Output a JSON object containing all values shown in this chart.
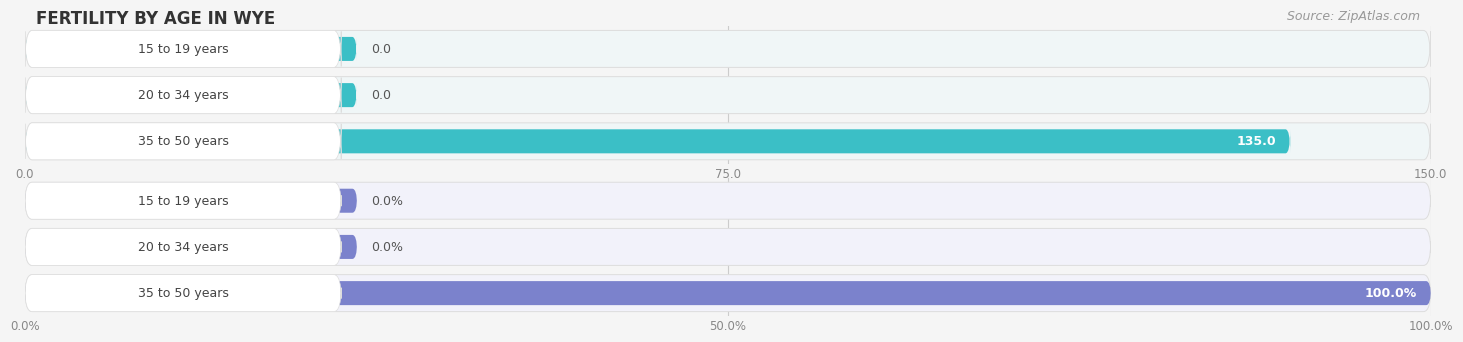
{
  "title": "FERTILITY BY AGE IN WYE",
  "source": "Source: ZipAtlas.com",
  "top_chart": {
    "categories": [
      "15 to 19 years",
      "20 to 34 years",
      "35 to 50 years"
    ],
    "values": [
      0.0,
      0.0,
      135.0
    ],
    "xlim": [
      0,
      150
    ],
    "xticks": [
      0.0,
      75.0,
      150.0
    ],
    "xtick_labels": [
      "0.0",
      "75.0",
      "150.0"
    ],
    "bar_color": "#3bbfc6",
    "bar_light_color": "#a8dde0",
    "bg_bar_color": "#f0f6f7",
    "label_box_color": "#ffffff",
    "value_label_color": "#555555",
    "value_label_color_inside": "#ffffff",
    "cat_text_color": "#444444"
  },
  "bottom_chart": {
    "categories": [
      "15 to 19 years",
      "20 to 34 years",
      "35 to 50 years"
    ],
    "values": [
      0.0,
      0.0,
      100.0
    ],
    "xlim": [
      0,
      100
    ],
    "xticks": [
      0.0,
      50.0,
      100.0
    ],
    "xtick_labels": [
      "0.0%",
      "50.0%",
      "100.0%"
    ],
    "bar_color": "#7b82cc",
    "bar_light_color": "#b8bcdf",
    "bg_bar_color": "#f2f2fa",
    "label_box_color": "#ffffff",
    "value_label_color": "#555555",
    "value_label_color_inside": "#ffffff",
    "cat_text_color": "#444444"
  },
  "fig_bg_color": "#f5f5f5",
  "chart_bg_color": "#f5f5f5",
  "title_fontsize": 12,
  "source_fontsize": 9,
  "cat_fontsize": 9,
  "val_fontsize": 9,
  "tick_fontsize": 8.5
}
